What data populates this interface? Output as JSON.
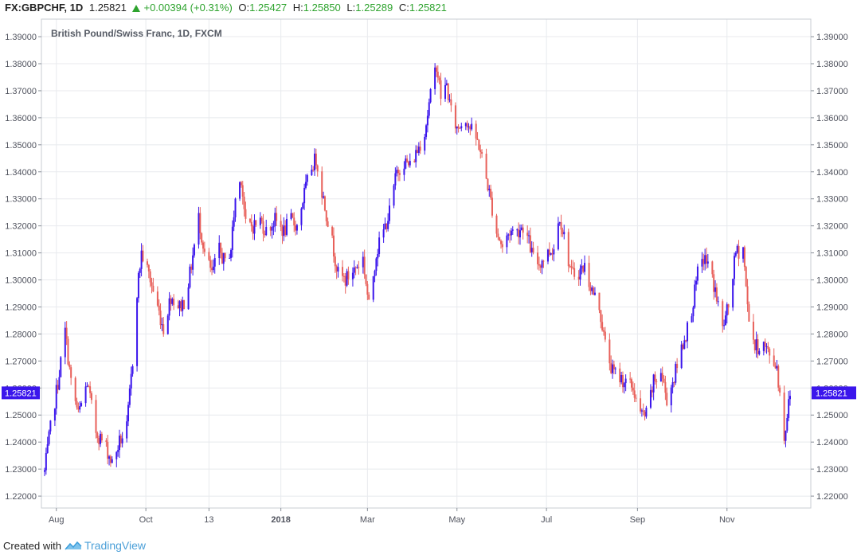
{
  "header": {
    "symbol": "FX:GBPCHF, 1D",
    "last": "1.25821",
    "change": "+0.00394 (+0.31%)",
    "o_label": "O:",
    "o_value": "1.25427",
    "h_label": "H:",
    "h_value": "1.25850",
    "l_label": "L:",
    "l_value": "1.25289",
    "c_label": "C:",
    "c_value": "1.25821"
  },
  "footer": {
    "created_with": "Created with",
    "brand": "TradingView"
  },
  "colors": {
    "up": "#3b16ec",
    "down": "#e8605a",
    "grid": "#e8eaee",
    "axis": "#8a9099",
    "price_tag": "#3b16ec"
  },
  "chart_data": {
    "type": "candlestick",
    "title": "British Pound/Swiss Franc, 1D, FXCM",
    "ylim": [
      1.2156,
      1.3965
    ],
    "y_ticks": [
      "1.39000",
      "1.38000",
      "1.37000",
      "1.36000",
      "1.35000",
      "1.34000",
      "1.33000",
      "1.32000",
      "1.31000",
      "1.30000",
      "1.29000",
      "1.28000",
      "1.27000",
      "1.26000",
      "1.25000",
      "1.24000",
      "1.23000",
      "1.22000"
    ],
    "x_ticks": [
      {
        "label": "Aug",
        "date": "2017-08-01"
      },
      {
        "label": "Oct",
        "date": "2017-10-01"
      },
      {
        "label": "13",
        "date": "2017-11-13"
      },
      {
        "label": "2018",
        "date": "2018-01-01"
      },
      {
        "label": "Mar",
        "date": "2018-03-01"
      },
      {
        "label": "May",
        "date": "2018-05-01"
      },
      {
        "label": "Jul",
        "date": "2018-07-01"
      },
      {
        "label": "Sep",
        "date": "2018-09-01"
      },
      {
        "label": "Nov",
        "date": "2018-11-01"
      }
    ],
    "start_date": "2017-07-24",
    "end_date": "2018-12-14",
    "last_price": "1.25821",
    "closes": [
      {
        "date": "2017-07-24",
        "close": 1.229
      },
      {
        "date": "2017-07-28",
        "close": 1.245
      },
      {
        "date": "2017-08-02",
        "close": 1.262
      },
      {
        "date": "2017-08-07",
        "close": 1.281
      },
      {
        "date": "2017-08-11",
        "close": 1.262
      },
      {
        "date": "2017-08-16",
        "close": 1.25
      },
      {
        "date": "2017-08-22",
        "close": 1.262
      },
      {
        "date": "2017-08-28",
        "close": 1.244
      },
      {
        "date": "2017-09-04",
        "close": 1.238
      },
      {
        "date": "2017-09-08",
        "close": 1.232
      },
      {
        "date": "2017-09-13",
        "close": 1.24
      },
      {
        "date": "2017-09-18",
        "close": 1.245
      },
      {
        "date": "2017-09-22",
        "close": 1.27
      },
      {
        "date": "2017-09-25",
        "close": 1.296
      },
      {
        "date": "2017-09-28",
        "close": 1.31
      },
      {
        "date": "2017-10-03",
        "close": 1.302
      },
      {
        "date": "2017-10-09",
        "close": 1.29
      },
      {
        "date": "2017-10-13",
        "close": 1.282
      },
      {
        "date": "2017-10-18",
        "close": 1.294
      },
      {
        "date": "2017-10-24",
        "close": 1.29
      },
      {
        "date": "2017-10-27",
        "close": 1.292
      },
      {
        "date": "2017-10-31",
        "close": 1.302
      },
      {
        "date": "2017-11-06",
        "close": 1.323
      },
      {
        "date": "2017-11-10",
        "close": 1.31
      },
      {
        "date": "2017-11-15",
        "close": 1.302
      },
      {
        "date": "2017-11-20",
        "close": 1.311
      },
      {
        "date": "2017-11-24",
        "close": 1.306
      },
      {
        "date": "2017-11-28",
        "close": 1.312
      },
      {
        "date": "2017-12-01",
        "close": 1.33
      },
      {
        "date": "2017-12-05",
        "close": 1.338
      },
      {
        "date": "2017-12-08",
        "close": 1.32
      },
      {
        "date": "2017-12-13",
        "close": 1.32
      },
      {
        "date": "2017-12-18",
        "close": 1.322
      },
      {
        "date": "2017-12-22",
        "close": 1.318
      },
      {
        "date": "2017-12-28",
        "close": 1.322
      },
      {
        "date": "2018-01-03",
        "close": 1.318
      },
      {
        "date": "2018-01-08",
        "close": 1.322
      },
      {
        "date": "2018-01-12",
        "close": 1.32
      },
      {
        "date": "2018-01-17",
        "close": 1.332
      },
      {
        "date": "2018-01-22",
        "close": 1.342
      },
      {
        "date": "2018-01-25",
        "close": 1.345
      },
      {
        "date": "2018-01-30",
        "close": 1.33
      },
      {
        "date": "2018-02-05",
        "close": 1.314
      },
      {
        "date": "2018-02-09",
        "close": 1.302
      },
      {
        "date": "2018-02-14",
        "close": 1.3
      },
      {
        "date": "2018-02-20",
        "close": 1.304
      },
      {
        "date": "2018-02-26",
        "close": 1.308
      },
      {
        "date": "2018-03-02",
        "close": 1.29
      },
      {
        "date": "2018-03-07",
        "close": 1.31
      },
      {
        "date": "2018-03-12",
        "close": 1.318
      },
      {
        "date": "2018-03-16",
        "close": 1.325
      },
      {
        "date": "2018-03-21",
        "close": 1.34
      },
      {
        "date": "2018-03-26",
        "close": 1.344
      },
      {
        "date": "2018-03-30",
        "close": 1.342
      },
      {
        "date": "2018-04-04",
        "close": 1.348
      },
      {
        "date": "2018-04-09",
        "close": 1.355
      },
      {
        "date": "2018-04-13",
        "close": 1.368
      },
      {
        "date": "2018-04-17",
        "close": 1.38
      },
      {
        "date": "2018-04-20",
        "close": 1.368
      },
      {
        "date": "2018-04-24",
        "close": 1.372
      },
      {
        "date": "2018-04-27",
        "close": 1.362
      },
      {
        "date": "2018-05-01",
        "close": 1.356
      },
      {
        "date": "2018-05-07",
        "close": 1.36
      },
      {
        "date": "2018-05-11",
        "close": 1.355
      },
      {
        "date": "2018-05-16",
        "close": 1.35
      },
      {
        "date": "2018-05-22",
        "close": 1.335
      },
      {
        "date": "2018-05-28",
        "close": 1.318
      },
      {
        "date": "2018-06-01",
        "close": 1.312
      },
      {
        "date": "2018-06-06",
        "close": 1.318
      },
      {
        "date": "2018-06-11",
        "close": 1.318
      },
      {
        "date": "2018-06-15",
        "close": 1.32
      },
      {
        "date": "2018-06-19",
        "close": 1.314
      },
      {
        "date": "2018-06-22",
        "close": 1.308
      },
      {
        "date": "2018-06-26",
        "close": 1.306
      },
      {
        "date": "2018-07-02",
        "close": 1.31
      },
      {
        "date": "2018-07-06",
        "close": 1.312
      },
      {
        "date": "2018-07-10",
        "close": 1.324
      },
      {
        "date": "2018-07-13",
        "close": 1.316
      },
      {
        "date": "2018-07-18",
        "close": 1.302
      },
      {
        "date": "2018-07-23",
        "close": 1.303
      },
      {
        "date": "2018-07-27",
        "close": 1.305
      },
      {
        "date": "2018-08-01",
        "close": 1.296
      },
      {
        "date": "2018-08-06",
        "close": 1.29
      },
      {
        "date": "2018-08-10",
        "close": 1.276
      },
      {
        "date": "2018-08-15",
        "close": 1.266
      },
      {
        "date": "2018-08-20",
        "close": 1.264
      },
      {
        "date": "2018-08-24",
        "close": 1.262
      },
      {
        "date": "2018-08-29",
        "close": 1.26
      },
      {
        "date": "2018-09-03",
        "close": 1.25
      },
      {
        "date": "2018-09-07",
        "close": 1.25
      },
      {
        "date": "2018-09-12",
        "close": 1.262
      },
      {
        "date": "2018-09-17",
        "close": 1.266
      },
      {
        "date": "2018-09-21",
        "close": 1.256
      },
      {
        "date": "2018-09-26",
        "close": 1.264
      },
      {
        "date": "2018-10-01",
        "close": 1.275
      },
      {
        "date": "2018-10-05",
        "close": 1.282
      },
      {
        "date": "2018-10-09",
        "close": 1.292
      },
      {
        "date": "2018-10-12",
        "close": 1.302
      },
      {
        "date": "2018-10-16",
        "close": 1.308
      },
      {
        "date": "2018-10-19",
        "close": 1.306
      },
      {
        "date": "2018-10-24",
        "close": 1.296
      },
      {
        "date": "2018-10-29",
        "close": 1.282
      },
      {
        "date": "2018-11-02",
        "close": 1.29
      },
      {
        "date": "2018-11-07",
        "close": 1.31
      },
      {
        "date": "2018-11-12",
        "close": 1.312
      },
      {
        "date": "2018-11-15",
        "close": 1.29
      },
      {
        "date": "2018-11-20",
        "close": 1.275
      },
      {
        "date": "2018-11-26",
        "close": 1.276
      },
      {
        "date": "2018-11-30",
        "close": 1.272
      },
      {
        "date": "2018-12-05",
        "close": 1.268
      },
      {
        "date": "2018-12-10",
        "close": 1.242
      },
      {
        "date": "2018-12-14",
        "close": 1.258
      }
    ]
  }
}
